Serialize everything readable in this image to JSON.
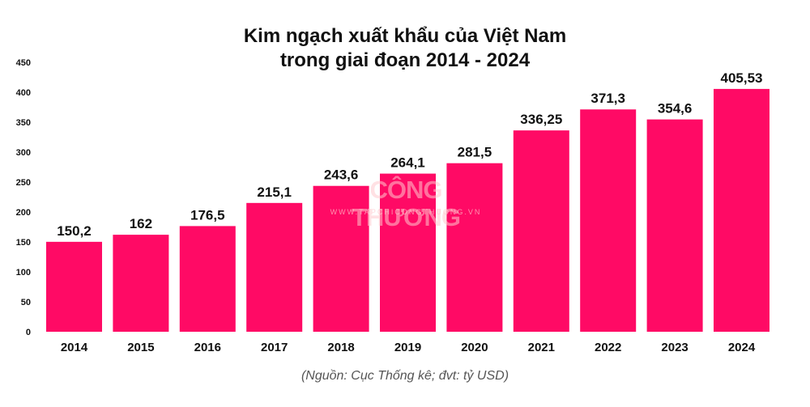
{
  "chart_data": {
    "type": "bar",
    "title_line1": "Kim ngạch xuất khẩu của Việt Nam",
    "title_line2": "trong giai đoạn 2014 - 2024",
    "categories": [
      "2014",
      "2015",
      "2016",
      "2017",
      "2018",
      "2019",
      "2020",
      "2021",
      "2022",
      "2023",
      "2024"
    ],
    "values": [
      150.2,
      162,
      176.5,
      215.1,
      243.6,
      264.1,
      281.5,
      336.25,
      371.3,
      354.6,
      405.53
    ],
    "value_labels": [
      "150,2",
      "162",
      "176,5",
      "215,1",
      "243,6",
      "264,1",
      "281,5",
      "336,25",
      "371,3",
      "354,6",
      "405,53"
    ],
    "y_ticks": [
      "0",
      "50",
      "100",
      "150",
      "200",
      "250",
      "300",
      "350",
      "400",
      "450"
    ],
    "ylim": [
      0,
      450
    ],
    "grid": false,
    "bar_color": "#ff0a65",
    "source": "(Nguồn: Cục Thống kê; đvt: tỷ USD)"
  },
  "watermark": {
    "main": "CÔNG THƯƠNG",
    "sub": "WWW.TAPCHICONGTHUONG.VN"
  }
}
